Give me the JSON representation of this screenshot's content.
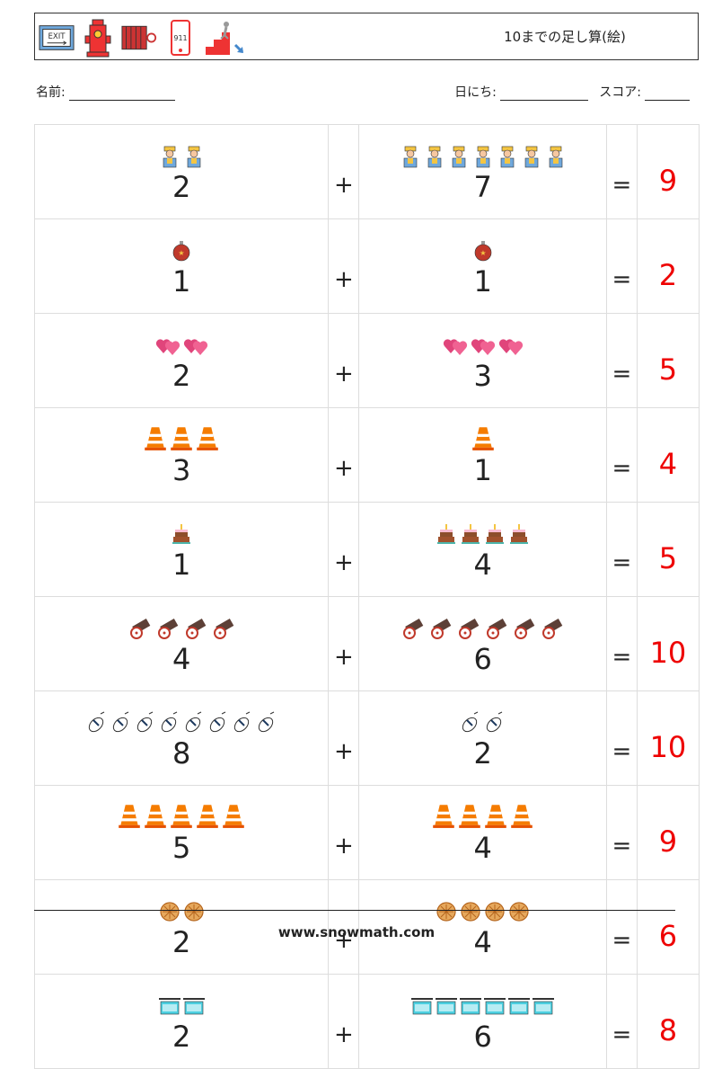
{
  "header": {
    "title": "10までの足し算(絵)",
    "icons": [
      "exit-sign-icon",
      "fire-hydrant-icon",
      "fire-hose-reel-icon",
      "phone-911-icon",
      "emergency-stairs-icon"
    ],
    "phone_text": "911",
    "exit_text": "EXIT"
  },
  "info": {
    "name_label": "名前:",
    "date_label": "日にち:",
    "score_label": "スコア:"
  },
  "problems": [
    {
      "a": "2",
      "b": "7",
      "op": "+",
      "eq": "=",
      "ans": "9",
      "icon": "worker"
    },
    {
      "a": "1",
      "b": "1",
      "op": "+",
      "eq": "=",
      "ans": "2",
      "icon": "ornament"
    },
    {
      "a": "2",
      "b": "3",
      "op": "+",
      "eq": "=",
      "ans": "5",
      "icon": "hearts"
    },
    {
      "a": "3",
      "b": "1",
      "op": "+",
      "eq": "=",
      "ans": "4",
      "icon": "cone"
    },
    {
      "a": "1",
      "b": "4",
      "op": "+",
      "eq": "=",
      "ans": "5",
      "icon": "cake"
    },
    {
      "a": "4",
      "b": "6",
      "op": "+",
      "eq": "=",
      "ans": "10",
      "icon": "cannon"
    },
    {
      "a": "8",
      "b": "2",
      "op": "+",
      "eq": "=",
      "ans": "10",
      "icon": "mouse"
    },
    {
      "a": "5",
      "b": "4",
      "op": "+",
      "eq": "=",
      "ans": "9",
      "icon": "cone"
    },
    {
      "a": "2",
      "b": "4",
      "op": "+",
      "eq": "=",
      "ans": "6",
      "icon": "pizza"
    },
    {
      "a": "2",
      "b": "6",
      "op": "+",
      "eq": "=",
      "ans": "8",
      "icon": "hotel-sign"
    }
  ],
  "footer": {
    "url": "www.snowmath.com"
  }
}
